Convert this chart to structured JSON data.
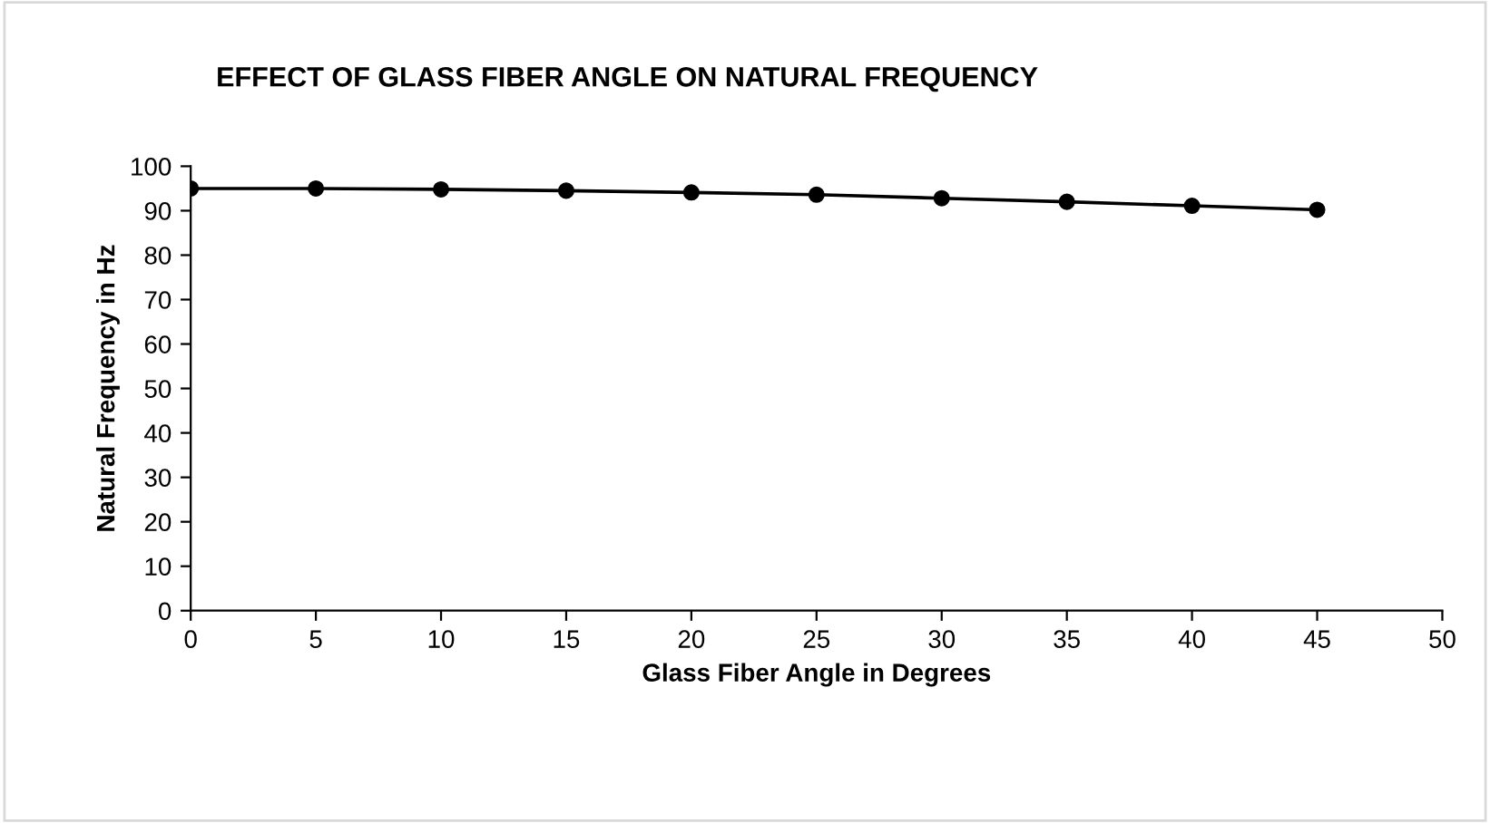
{
  "chart_data": {
    "type": "line",
    "title": "EFFECT OF GLASS FIBER ANGLE ON NATURAL FREQUENCY",
    "xlabel": "Glass Fiber Angle in Degrees",
    "ylabel": "Natural Frequency in Hz",
    "x": [
      0,
      5,
      10,
      15,
      20,
      25,
      30,
      35,
      40,
      45
    ],
    "series": [
      {
        "color": "#000000",
        "values": [
          95.0,
          95.0,
          94.8,
          94.5,
          94.1,
          93.6,
          92.8,
          92.0,
          91.1,
          90.2
        ]
      }
    ],
    "xlim": [
      0,
      50
    ],
    "xticks": [
      0,
      5,
      10,
      15,
      20,
      25,
      30,
      35,
      40,
      45,
      50
    ],
    "ylim": [
      0,
      100
    ],
    "yticks": [
      0,
      10,
      20,
      30,
      40,
      50,
      60,
      70,
      80,
      90,
      100
    ],
    "grid": false,
    "legend": false,
    "marker": "circle",
    "line_style": "solid"
  }
}
